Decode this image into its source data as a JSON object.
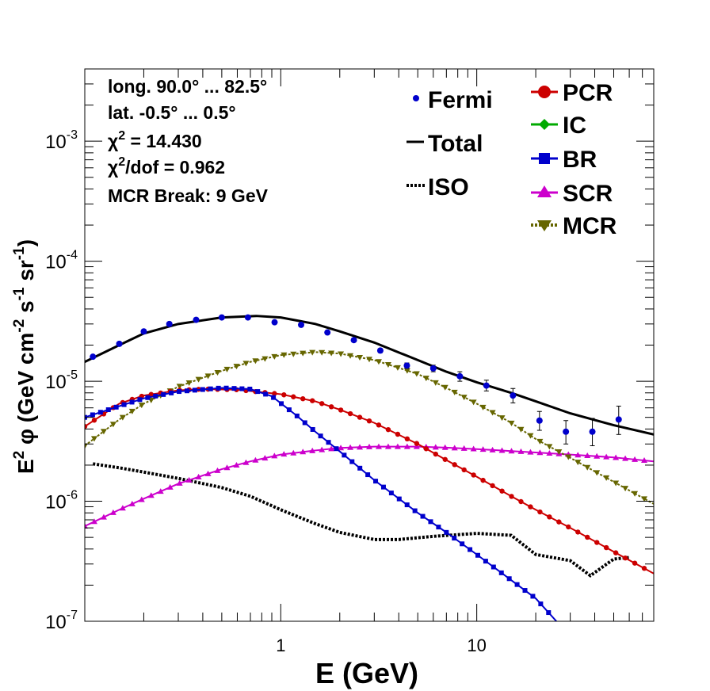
{
  "chart_data": {
    "type": "line",
    "xlabel": "E (GeV)",
    "ylabel_parts": {
      "a": "E",
      "b": "2",
      "c": " φ (GeV cm",
      "d": "-2",
      "e": " s",
      "f": "-1",
      "g": " sr",
      "h": "-1",
      "i": ")"
    },
    "x_scale": "log",
    "y_scale": "log",
    "xlim": [
      0.1,
      80
    ],
    "ylim": [
      1e-07,
      0.004
    ],
    "x_tick_labels": [
      {
        "v": 1,
        "t": "1"
      },
      {
        "v": 10,
        "t": "10"
      }
    ],
    "y_tick_labels": [
      {
        "v": 1e-07,
        "m": "10",
        "e": "-7"
      },
      {
        "v": 1e-06,
        "m": "10",
        "e": "-6"
      },
      {
        "v": 1e-05,
        "m": "10",
        "e": "-5"
      },
      {
        "v": 0.0001,
        "m": "10",
        "e": "-4"
      },
      {
        "v": 0.001,
        "m": "10",
        "e": "-3"
      }
    ],
    "info": {
      "longitude": "long. 90.0° ... 82.5°",
      "latitude": "lat. -0.5° ... 0.5°",
      "chi2_sym": "χ",
      "chi2_exp": "2",
      "chi2_rest": " = 14.430",
      "chi2dof_rest": "/dof = 0.962",
      "mcr_break": "MCR Break:  9 GeV"
    },
    "legend": {
      "fermi": "Fermi",
      "total": "Total",
      "iso": "ISO",
      "pcr": "PCR",
      "ic": "IC",
      "br": "BR",
      "scr": "SCR",
      "mcr": "MCR"
    },
    "colors": {
      "fermi": "#0000cc",
      "total": "#000000",
      "iso": "#000000",
      "pcr": "#cc0000",
      "ic": "#00aa00",
      "br": "#0000cc",
      "scr": "#cc00cc",
      "mcr": "#666600"
    },
    "series": [
      {
        "key": "fermi",
        "name": "Fermi",
        "type": "points",
        "points": [
          {
            "x": 0.11,
            "y": 1.6e-05,
            "err": [
              1.55e-05,
              1.65e-05
            ]
          },
          {
            "x": 0.15,
            "y": 2.05e-05,
            "err": [
              1.98e-05,
              2.12e-05
            ]
          },
          {
            "x": 0.2,
            "y": 2.6e-05,
            "err": [
              2.52e-05,
              2.68e-05
            ]
          },
          {
            "x": 0.27,
            "y": 3e-05,
            "err": [
              2.92e-05,
              3.08e-05
            ]
          },
          {
            "x": 0.37,
            "y": 3.25e-05,
            "err": [
              3.17e-05,
              3.33e-05
            ]
          },
          {
            "x": 0.5,
            "y": 3.4e-05,
            "err": [
              3.32e-05,
              3.48e-05
            ]
          },
          {
            "x": 0.68,
            "y": 3.4e-05,
            "err": [
              3.32e-05,
              3.48e-05
            ]
          },
          {
            "x": 0.93,
            "y": 3.1e-05,
            "err": [
              3.02e-05,
              3.18e-05
            ]
          },
          {
            "x": 1.27,
            "y": 2.95e-05,
            "err": [
              2.87e-05,
              3.03e-05
            ]
          },
          {
            "x": 1.73,
            "y": 2.55e-05,
            "err": [
              2.48e-05,
              2.62e-05
            ]
          },
          {
            "x": 2.36,
            "y": 2.2e-05,
            "err": [
              2.13e-05,
              2.27e-05
            ]
          },
          {
            "x": 3.22,
            "y": 1.8e-05,
            "err": [
              1.73e-05,
              1.87e-05
            ]
          },
          {
            "x": 4.4,
            "y": 1.35e-05,
            "err": [
              1.28e-05,
              1.42e-05
            ]
          },
          {
            "x": 6.0,
            "y": 1.28e-05,
            "err": [
              1.2e-05,
              1.36e-05
            ]
          },
          {
            "x": 8.2,
            "y": 1.1e-05,
            "err": [
              1e-05,
              1.2e-05
            ]
          },
          {
            "x": 11.2,
            "y": 9.2e-06,
            "err": [
              8.3e-06,
              1.02e-05
            ]
          },
          {
            "x": 15.3,
            "y": 7.6e-06,
            "err": [
              6.6e-06,
              8.7e-06
            ]
          },
          {
            "x": 20.9,
            "y": 4.7e-06,
            "err": [
              3.9e-06,
              5.6e-06
            ]
          },
          {
            "x": 28.5,
            "y": 3.8e-06,
            "err": [
              3e-06,
              4.7e-06
            ]
          },
          {
            "x": 38.9,
            "y": 3.8e-06,
            "err": [
              2.9e-06,
              4.9e-06
            ]
          },
          {
            "x": 53.0,
            "y": 4.8e-06,
            "err": [
              3.6e-06,
              6.2e-06
            ]
          }
        ]
      },
      {
        "key": "total",
        "name": "Total",
        "type": "line",
        "points": [
          {
            "x": 0.1,
            "y": 1.45e-05
          },
          {
            "x": 0.15,
            "y": 2e-05
          },
          {
            "x": 0.2,
            "y": 2.5e-05
          },
          {
            "x": 0.3,
            "y": 3e-05
          },
          {
            "x": 0.5,
            "y": 3.4e-05
          },
          {
            "x": 0.75,
            "y": 3.5e-05
          },
          {
            "x": 1.0,
            "y": 3.4e-05
          },
          {
            "x": 1.5,
            "y": 3e-05
          },
          {
            "x": 2.0,
            "y": 2.6e-05
          },
          {
            "x": 3.0,
            "y": 2.1e-05
          },
          {
            "x": 5.0,
            "y": 1.5e-05
          },
          {
            "x": 7.0,
            "y": 1.2e-05
          },
          {
            "x": 10.0,
            "y": 9.8e-06
          },
          {
            "x": 15.0,
            "y": 8e-06
          },
          {
            "x": 20.0,
            "y": 6.8e-06
          },
          {
            "x": 30.0,
            "y": 5.4e-06
          },
          {
            "x": 50.0,
            "y": 4.3e-06
          },
          {
            "x": 80.0,
            "y": 3.6e-06
          }
        ]
      },
      {
        "key": "iso",
        "name": "ISO",
        "type": "dotted",
        "points": [
          {
            "x": 0.11,
            "y": 2.05e-06
          },
          {
            "x": 0.15,
            "y": 1.9e-06
          },
          {
            "x": 0.2,
            "y": 1.75e-06
          },
          {
            "x": 0.3,
            "y": 1.55e-06
          },
          {
            "x": 0.5,
            "y": 1.3e-06
          },
          {
            "x": 0.7,
            "y": 1.1e-06
          },
          {
            "x": 1.0,
            "y": 8.5e-07
          },
          {
            "x": 1.5,
            "y": 6.5e-07
          },
          {
            "x": 2.0,
            "y": 5.5e-07
          },
          {
            "x": 3.0,
            "y": 4.8e-07
          },
          {
            "x": 4.0,
            "y": 4.8e-07
          },
          {
            "x": 6.0,
            "y": 5.1e-07
          },
          {
            "x": 10.0,
            "y": 5.4e-07
          },
          {
            "x": 15.0,
            "y": 5.2e-07
          },
          {
            "x": 20.0,
            "y": 3.6e-07
          },
          {
            "x": 30.0,
            "y": 3.2e-07
          },
          {
            "x": 38.0,
            "y": 2.4e-07
          },
          {
            "x": 50.0,
            "y": 3.3e-07
          },
          {
            "x": 60.0,
            "y": 3.4e-07
          }
        ]
      },
      {
        "key": "pcr",
        "name": "PCR",
        "type": "marker-line",
        "marker": "circle",
        "points": [
          {
            "x": 0.1,
            "y": 4.2e-06
          },
          {
            "x": 0.15,
            "y": 6.5e-06
          },
          {
            "x": 0.2,
            "y": 7.6e-06
          },
          {
            "x": 0.3,
            "y": 8.4e-06
          },
          {
            "x": 0.4,
            "y": 8.6e-06
          },
          {
            "x": 0.6,
            "y": 8.5e-06
          },
          {
            "x": 1.0,
            "y": 7.8e-06
          },
          {
            "x": 1.5,
            "y": 6.8e-06
          },
          {
            "x": 2.0,
            "y": 5.8e-06
          },
          {
            "x": 3.0,
            "y": 4.5e-06
          },
          {
            "x": 5.0,
            "y": 3e-06
          },
          {
            "x": 7.0,
            "y": 2.2e-06
          },
          {
            "x": 10.0,
            "y": 1.6e-06
          },
          {
            "x": 15.0,
            "y": 1.1e-06
          },
          {
            "x": 20.0,
            "y": 8.5e-07
          },
          {
            "x": 30.0,
            "y": 6e-07
          },
          {
            "x": 50.0,
            "y": 3.8e-07
          },
          {
            "x": 80.0,
            "y": 2.5e-07
          }
        ]
      },
      {
        "key": "br",
        "name": "BR",
        "type": "marker-line",
        "marker": "square",
        "points": [
          {
            "x": 0.1,
            "y": 5e-06
          },
          {
            "x": 0.15,
            "y": 6.2e-06
          },
          {
            "x": 0.2,
            "y": 7.2e-06
          },
          {
            "x": 0.3,
            "y": 8.2e-06
          },
          {
            "x": 0.5,
            "y": 8.8e-06
          },
          {
            "x": 0.7,
            "y": 8.6e-06
          },
          {
            "x": 0.9,
            "y": 7.5e-06
          },
          {
            "x": 1.2,
            "y": 5.2e-06
          },
          {
            "x": 1.5,
            "y": 3.8e-06
          },
          {
            "x": 2.0,
            "y": 2.6e-06
          },
          {
            "x": 3.0,
            "y": 1.5e-06
          },
          {
            "x": 5.0,
            "y": 8e-07
          },
          {
            "x": 7.0,
            "y": 5.5e-07
          },
          {
            "x": 10.0,
            "y": 3.6e-07
          },
          {
            "x": 15.0,
            "y": 2.2e-07
          },
          {
            "x": 20.0,
            "y": 1.55e-07
          },
          {
            "x": 25.5,
            "y": 1e-07
          }
        ]
      },
      {
        "key": "scr",
        "name": "SCR",
        "type": "marker-line",
        "marker": "triangle-up",
        "points": [
          {
            "x": 0.1,
            "y": 6.2e-07
          },
          {
            "x": 0.15,
            "y": 8.5e-07
          },
          {
            "x": 0.2,
            "y": 1.05e-06
          },
          {
            "x": 0.3,
            "y": 1.4e-06
          },
          {
            "x": 0.5,
            "y": 1.85e-06
          },
          {
            "x": 0.7,
            "y": 2.15e-06
          },
          {
            "x": 1.0,
            "y": 2.45e-06
          },
          {
            "x": 1.5,
            "y": 2.65e-06
          },
          {
            "x": 2.0,
            "y": 2.78e-06
          },
          {
            "x": 3.0,
            "y": 2.85e-06
          },
          {
            "x": 5.0,
            "y": 2.85e-06
          },
          {
            "x": 7.0,
            "y": 2.8e-06
          },
          {
            "x": 10.0,
            "y": 2.72e-06
          },
          {
            "x": 15.0,
            "y": 2.62e-06
          },
          {
            "x": 20.0,
            "y": 2.55e-06
          },
          {
            "x": 30.0,
            "y": 2.45e-06
          },
          {
            "x": 50.0,
            "y": 2.32e-06
          },
          {
            "x": 80.0,
            "y": 2.15e-06
          }
        ]
      },
      {
        "key": "mcr",
        "name": "MCR",
        "type": "marker-line",
        "marker": "triangle-down",
        "points": [
          {
            "x": 0.1,
            "y": 2.9e-06
          },
          {
            "x": 0.15,
            "y": 4.8e-06
          },
          {
            "x": 0.2,
            "y": 6.5e-06
          },
          {
            "x": 0.3,
            "y": 9e-06
          },
          {
            "x": 0.5,
            "y": 1.22e-05
          },
          {
            "x": 0.7,
            "y": 1.45e-05
          },
          {
            "x": 1.0,
            "y": 1.65e-05
          },
          {
            "x": 1.5,
            "y": 1.75e-05
          },
          {
            "x": 2.0,
            "y": 1.7e-05
          },
          {
            "x": 3.0,
            "y": 1.5e-05
          },
          {
            "x": 5.0,
            "y": 1.15e-05
          },
          {
            "x": 7.0,
            "y": 8.8e-06
          },
          {
            "x": 10.0,
            "y": 6.5e-06
          },
          {
            "x": 15.0,
            "y": 4.5e-06
          },
          {
            "x": 20.0,
            "y": 3.3e-06
          },
          {
            "x": 30.0,
            "y": 2.3e-06
          },
          {
            "x": 50.0,
            "y": 1.45e-06
          },
          {
            "x": 80.0,
            "y": 9.5e-07
          }
        ]
      }
    ]
  }
}
